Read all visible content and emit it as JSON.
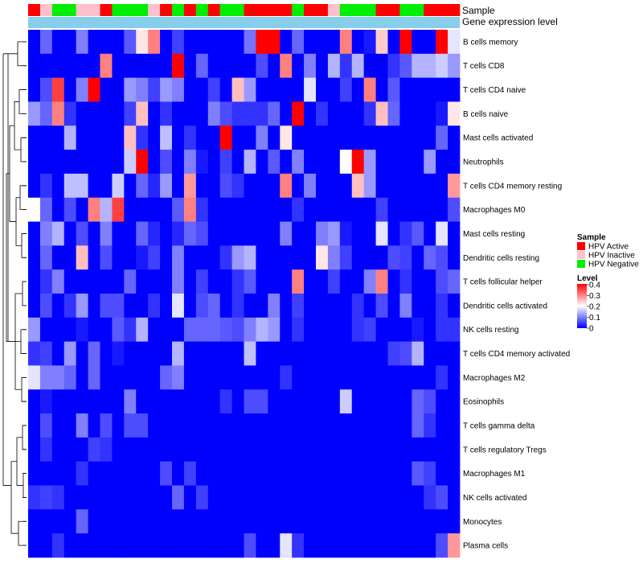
{
  "chart_data": {
    "type": "heatmap",
    "annotation_labels": [
      "Sample",
      "Gene expression level"
    ],
    "rows": [
      "B cells memory",
      "T cells CD8",
      "T cells CD4 naive",
      "B cells naive",
      "Mast cells activated",
      "Neutrophils",
      "T cells CD4 memory resting",
      "Macrophages M0",
      "Mast cells resting",
      "Dendritic cells resting",
      "T cells follicular helper",
      "Dendritic cells activated",
      "NK cells resting",
      "T cells CD4 memory activated",
      "Macrophages M2",
      "Eosinophils",
      "T cells gamma delta",
      "T cells regulatory  Tregs",
      "Macrophages M1",
      "NK cells activated",
      "Monocytes",
      "Plasma cells"
    ],
    "samples": [
      "A",
      "I",
      "N",
      "N",
      "I",
      "I",
      "A",
      "N",
      "N",
      "N",
      "I",
      "A",
      "N",
      "A",
      "N",
      "A",
      "N",
      "N",
      "A",
      "A",
      "A",
      "A",
      "N",
      "A",
      "A",
      "I",
      "N",
      "N",
      "N",
      "A",
      "A",
      "N",
      "N",
      "A",
      "A",
      "A"
    ],
    "values": [
      [
        0.0,
        0.08,
        0.0,
        0.0,
        0.1,
        0.0,
        0.0,
        0.0,
        0.07,
        0.22,
        0.3,
        0.0,
        0.05,
        0.0,
        0.0,
        0.0,
        0.0,
        0.0,
        0.09,
        0.4,
        0.4,
        0.0,
        0.08,
        0.0,
        0.0,
        0.0,
        0.3,
        0.0,
        0.02,
        0.24,
        0.0,
        0.4,
        0.0,
        0.0,
        0.4,
        0.18
      ],
      [
        0.0,
        0.0,
        0.0,
        0.0,
        0.0,
        0.0,
        0.3,
        0.0,
        0.0,
        0.0,
        0.0,
        0.0,
        0.4,
        0.0,
        0.08,
        0.0,
        0.0,
        0.0,
        0.0,
        0.06,
        0.0,
        0.3,
        0.0,
        0.1,
        0.0,
        0.14,
        0.04,
        0.14,
        0.0,
        0.0,
        0.04,
        0.07,
        0.14,
        0.14,
        0.16,
        0.12
      ],
      [
        0.0,
        0.06,
        0.35,
        0.0,
        0.1,
        0.4,
        0.0,
        0.0,
        0.12,
        0.1,
        0.05,
        0.12,
        0.1,
        0.0,
        0.0,
        0.05,
        0.0,
        0.25,
        0.12,
        0.0,
        0.0,
        0.0,
        0.0,
        0.18,
        0.0,
        0.0,
        0.05,
        0.0,
        0.3,
        0.0,
        0.07,
        0.0,
        0.0,
        0.0,
        0.0,
        0.0
      ],
      [
        0.12,
        0.08,
        0.3,
        0.04,
        0.0,
        0.0,
        0.0,
        0.0,
        0.05,
        0.25,
        0.0,
        0.04,
        0.0,
        0.0,
        0.0,
        0.1,
        0.06,
        0.04,
        0.04,
        0.04,
        0.08,
        0.0,
        0.4,
        0.0,
        0.04,
        0.0,
        0.0,
        0.0,
        0.04,
        0.25,
        0.08,
        0.0,
        0.0,
        0.0,
        0.02,
        0.22
      ],
      [
        0.0,
        0.0,
        0.0,
        0.14,
        0.0,
        0.0,
        0.0,
        0.0,
        0.25,
        0.04,
        0.0,
        0.15,
        0.0,
        0.04,
        0.0,
        0.0,
        0.4,
        0.0,
        0.0,
        0.1,
        0.0,
        0.22,
        0.0,
        0.0,
        0.0,
        0.0,
        0.0,
        0.0,
        0.0,
        0.0,
        0.0,
        0.0,
        0.0,
        0.0,
        0.08,
        0.0
      ],
      [
        0.0,
        0.0,
        0.0,
        0.0,
        0.0,
        0.0,
        0.0,
        0.0,
        0.16,
        0.4,
        0.0,
        0.06,
        0.0,
        0.1,
        0.02,
        0.0,
        0.05,
        0.0,
        0.14,
        0.0,
        0.07,
        0.0,
        0.1,
        0.0,
        0.0,
        0.0,
        0.2,
        0.4,
        0.12,
        0.0,
        0.0,
        0.0,
        0.0,
        0.12,
        0.0,
        0.0
      ],
      [
        0.0,
        0.04,
        0.0,
        0.15,
        0.15,
        0.0,
        0.0,
        0.16,
        0.0,
        0.08,
        0.03,
        0.12,
        0.0,
        0.28,
        0.0,
        0.0,
        0.06,
        0.04,
        0.0,
        0.0,
        0.0,
        0.3,
        0.0,
        0.1,
        0.0,
        0.0,
        0.0,
        0.25,
        0.12,
        0.0,
        0.0,
        0.0,
        0.0,
        0.0,
        0.0,
        0.28
      ],
      [
        0.2,
        0.08,
        0.0,
        0.06,
        0.0,
        0.3,
        0.14,
        0.35,
        0.0,
        0.0,
        0.0,
        0.0,
        0.07,
        0.3,
        0.04,
        0.0,
        0.0,
        0.0,
        0.0,
        0.0,
        0.0,
        0.0,
        0.04,
        0.0,
        0.0,
        0.0,
        0.0,
        0.0,
        0.0,
        0.05,
        0.0,
        0.0,
        0.0,
        0.0,
        0.0,
        0.06
      ],
      [
        0.0,
        0.1,
        0.14,
        0.0,
        0.06,
        0.0,
        0.1,
        0.0,
        0.0,
        0.08,
        0.03,
        0.0,
        0.03,
        0.08,
        0.06,
        0.0,
        0.0,
        0.0,
        0.0,
        0.0,
        0.0,
        0.1,
        0.0,
        0.0,
        0.1,
        0.12,
        0.02,
        0.0,
        0.0,
        0.18,
        0.0,
        0.04,
        0.07,
        0.0,
        0.18,
        0.0
      ],
      [
        0.0,
        0.08,
        0.0,
        0.0,
        0.25,
        0.0,
        0.06,
        0.0,
        0.0,
        0.02,
        0.05,
        0.0,
        0.1,
        0.0,
        0.0,
        0.0,
        0.04,
        0.12,
        0.14,
        0.0,
        0.0,
        0.0,
        0.0,
        0.0,
        0.22,
        0.1,
        0.05,
        0.0,
        0.0,
        0.0,
        0.06,
        0.05,
        0.0,
        0.08,
        0.06,
        0.0
      ],
      [
        0.0,
        0.04,
        0.1,
        0.0,
        0.0,
        0.0,
        0.0,
        0.0,
        0.08,
        0.0,
        0.0,
        0.0,
        0.1,
        0.0,
        0.05,
        0.0,
        0.0,
        0.04,
        0.07,
        0.0,
        0.0,
        0.0,
        0.3,
        0.0,
        0.0,
        0.05,
        0.0,
        0.0,
        0.1,
        0.3,
        0.0,
        0.04,
        0.0,
        0.0,
        0.06,
        0.08
      ],
      [
        0.0,
        0.06,
        0.0,
        0.04,
        0.12,
        0.0,
        0.06,
        0.06,
        0.0,
        0.0,
        0.04,
        0.0,
        0.18,
        0.0,
        0.06,
        0.08,
        0.0,
        0.04,
        0.0,
        0.0,
        0.1,
        0.0,
        0.05,
        0.0,
        0.0,
        0.0,
        0.0,
        0.04,
        0.0,
        0.06,
        0.0,
        0.1,
        0.0,
        0.0,
        0.04,
        0.0
      ],
      [
        0.12,
        0.0,
        0.0,
        0.0,
        0.02,
        0.0,
        0.0,
        0.07,
        0.04,
        0.14,
        0.0,
        0.0,
        0.0,
        0.08,
        0.08,
        0.08,
        0.07,
        0.06,
        0.1,
        0.14,
        0.12,
        0.0,
        0.04,
        0.0,
        0.0,
        0.0,
        0.0,
        0.04,
        0.05,
        0.0,
        0.0,
        0.0,
        0.02,
        0.0,
        0.04,
        0.04
      ],
      [
        0.04,
        0.05,
        0.0,
        0.12,
        0.0,
        0.08,
        0.0,
        0.02,
        0.0,
        0.0,
        0.0,
        0.0,
        0.14,
        0.0,
        0.0,
        0.0,
        0.0,
        0.0,
        0.15,
        0.0,
        0.0,
        0.0,
        0.0,
        0.0,
        0.0,
        0.0,
        0.0,
        0.0,
        0.0,
        0.0,
        0.05,
        0.06,
        0.14,
        0.0,
        0.0,
        0.0
      ],
      [
        0.18,
        0.1,
        0.1,
        0.08,
        0.0,
        0.08,
        0.0,
        0.0,
        0.0,
        0.0,
        0.0,
        0.08,
        0.1,
        0.0,
        0.0,
        0.0,
        0.0,
        0.0,
        0.0,
        0.0,
        0.0,
        0.04,
        0.0,
        0.0,
        0.0,
        0.0,
        0.0,
        0.0,
        0.0,
        0.0,
        0.0,
        0.0,
        0.0,
        0.0,
        0.04,
        0.0
      ],
      [
        0.0,
        0.02,
        0.0,
        0.0,
        0.0,
        0.0,
        0.0,
        0.0,
        0.1,
        0.0,
        0.0,
        0.0,
        0.0,
        0.0,
        0.0,
        0.0,
        0.04,
        0.0,
        0.06,
        0.06,
        0.0,
        0.0,
        0.0,
        0.0,
        0.0,
        0.0,
        0.16,
        0.0,
        0.0,
        0.0,
        0.0,
        0.0,
        0.08,
        0.06,
        0.0,
        0.0
      ],
      [
        0.0,
        0.06,
        0.0,
        0.0,
        0.1,
        0.0,
        0.06,
        0.0,
        0.06,
        0.06,
        0.0,
        0.0,
        0.0,
        0.0,
        0.0,
        0.0,
        0.0,
        0.0,
        0.0,
        0.0,
        0.0,
        0.0,
        0.0,
        0.0,
        0.0,
        0.0,
        0.0,
        0.0,
        0.0,
        0.0,
        0.0,
        0.0,
        0.08,
        0.04,
        0.0,
        0.0
      ],
      [
        0.0,
        0.04,
        0.0,
        0.0,
        0.0,
        0.05,
        0.04,
        0.0,
        0.0,
        0.0,
        0.0,
        0.0,
        0.0,
        0.0,
        0.0,
        0.0,
        0.0,
        0.0,
        0.0,
        0.0,
        0.0,
        0.0,
        0.0,
        0.0,
        0.0,
        0.0,
        0.0,
        0.0,
        0.0,
        0.0,
        0.0,
        0.0,
        0.0,
        0.0,
        0.0,
        0.0
      ],
      [
        0.0,
        0.0,
        0.0,
        0.0,
        0.04,
        0.0,
        0.0,
        0.0,
        0.0,
        0.0,
        0.0,
        0.06,
        0.0,
        0.05,
        0.0,
        0.0,
        0.0,
        0.0,
        0.0,
        0.0,
        0.0,
        0.0,
        0.0,
        0.0,
        0.0,
        0.0,
        0.0,
        0.0,
        0.0,
        0.0,
        0.0,
        0.0,
        0.07,
        0.05,
        0.0,
        0.0
      ],
      [
        0.04,
        0.05,
        0.04,
        0.0,
        0.0,
        0.0,
        0.0,
        0.0,
        0.0,
        0.0,
        0.0,
        0.0,
        0.08,
        0.0,
        0.05,
        0.0,
        0.0,
        0.0,
        0.0,
        0.0,
        0.0,
        0.0,
        0.0,
        0.0,
        0.0,
        0.0,
        0.0,
        0.0,
        0.0,
        0.0,
        0.0,
        0.0,
        0.0,
        0.04,
        0.06,
        0.0
      ],
      [
        0.0,
        0.0,
        0.0,
        0.0,
        0.08,
        0.0,
        0.0,
        0.0,
        0.0,
        0.0,
        0.0,
        0.0,
        0.0,
        0.0,
        0.0,
        0.0,
        0.0,
        0.0,
        0.0,
        0.0,
        0.0,
        0.0,
        0.0,
        0.0,
        0.0,
        0.0,
        0.0,
        0.0,
        0.0,
        0.0,
        0.0,
        0.0,
        0.0,
        0.0,
        0.0,
        0.0
      ],
      [
        0.0,
        0.0,
        0.04,
        0.0,
        0.0,
        0.0,
        0.0,
        0.0,
        0.0,
        0.0,
        0.0,
        0.0,
        0.0,
        0.0,
        0.0,
        0.0,
        0.0,
        0.0,
        0.06,
        0.0,
        0.0,
        0.18,
        0.04,
        0.0,
        0.0,
        0.0,
        0.0,
        0.0,
        0.0,
        0.0,
        0.0,
        0.0,
        0.0,
        0.0,
        0.06,
        0.28
      ]
    ],
    "legend_sample": {
      "title": "Sample",
      "items": [
        {
          "label": "HPV Active",
          "color": "#ff0000"
        },
        {
          "label": "HPV Inactive",
          "color": "#ffc0cb"
        },
        {
          "label": "HPV Negative",
          "color": "#00ee00"
        }
      ]
    },
    "legend_level": {
      "title": "Level",
      "ticks": [
        "0.4",
        "0.3",
        "0.2",
        "0.1",
        "0"
      ],
      "range": [
        0,
        0.4
      ]
    },
    "colors": {
      "low": "#0000ff",
      "mid": "#ffffff",
      "high": "#ff0000",
      "expression_bar": "#87ceeb"
    }
  }
}
